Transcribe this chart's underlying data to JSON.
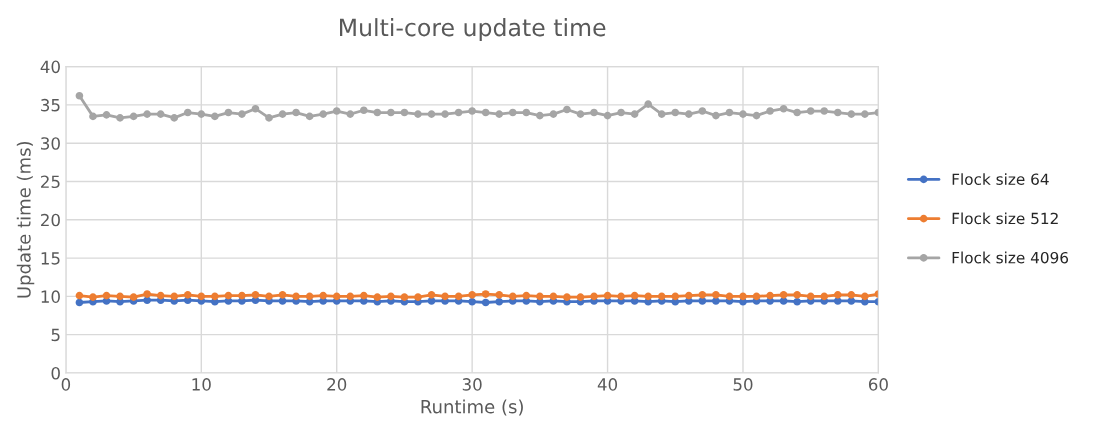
{
  "chart_data": {
    "type": "line",
    "title": "Multi-core update time",
    "xlabel": "Runtime (s)",
    "ylabel": "Update time (ms)",
    "x": [
      1,
      2,
      3,
      4,
      5,
      6,
      7,
      8,
      9,
      10,
      11,
      12,
      13,
      14,
      15,
      16,
      17,
      18,
      19,
      20,
      21,
      22,
      23,
      24,
      25,
      26,
      27,
      28,
      29,
      30,
      31,
      32,
      33,
      34,
      35,
      36,
      37,
      38,
      39,
      40,
      41,
      42,
      43,
      44,
      45,
      46,
      47,
      48,
      49,
      50,
      51,
      52,
      53,
      54,
      55,
      56,
      57,
      58,
      59,
      60
    ],
    "series": [
      {
        "name": "Flock size 64",
        "color": "#4472c4",
        "values": [
          9.2,
          9.3,
          9.4,
          9.3,
          9.4,
          9.5,
          9.5,
          9.4,
          9.5,
          9.4,
          9.3,
          9.4,
          9.4,
          9.5,
          9.4,
          9.4,
          9.4,
          9.3,
          9.4,
          9.4,
          9.4,
          9.4,
          9.3,
          9.4,
          9.3,
          9.3,
          9.4,
          9.4,
          9.4,
          9.3,
          9.2,
          9.3,
          9.4,
          9.4,
          9.3,
          9.4,
          9.3,
          9.3,
          9.4,
          9.4,
          9.4,
          9.4,
          9.3,
          9.4,
          9.3,
          9.4,
          9.4,
          9.4,
          9.4,
          9.3,
          9.4,
          9.4,
          9.4,
          9.3,
          9.4,
          9.4,
          9.4,
          9.4,
          9.3,
          9.3
        ]
      },
      {
        "name": "Flock size 512",
        "color": "#ed7d31",
        "values": [
          10.1,
          9.9,
          10.1,
          10.0,
          9.9,
          10.3,
          10.1,
          10.0,
          10.2,
          10.0,
          10.0,
          10.1,
          10.1,
          10.2,
          10.0,
          10.2,
          10.0,
          10.0,
          10.1,
          10.0,
          10.0,
          10.1,
          9.9,
          10.0,
          9.9,
          9.9,
          10.2,
          10.0,
          10.0,
          10.2,
          10.3,
          10.2,
          10.0,
          10.1,
          10.0,
          10.0,
          9.9,
          9.9,
          10.0,
          10.1,
          10.0,
          10.1,
          10.0,
          10.0,
          10.0,
          10.1,
          10.2,
          10.2,
          10.0,
          10.0,
          10.0,
          10.1,
          10.2,
          10.2,
          10.0,
          10.0,
          10.2,
          10.2,
          10.0,
          10.3
        ]
      },
      {
        "name": "Flock size 4096",
        "color": "#a5a5a5",
        "values": [
          36.2,
          33.5,
          33.7,
          33.3,
          33.5,
          33.8,
          33.8,
          33.3,
          34.0,
          33.8,
          33.5,
          34.0,
          33.8,
          34.5,
          33.3,
          33.8,
          34.0,
          33.5,
          33.8,
          34.2,
          33.8,
          34.3,
          34.0,
          34.0,
          34.0,
          33.8,
          33.8,
          33.8,
          34.0,
          34.2,
          34.0,
          33.8,
          34.0,
          34.0,
          33.6,
          33.8,
          34.4,
          33.8,
          34.0,
          33.6,
          34.0,
          33.8,
          35.1,
          33.8,
          34.0,
          33.8,
          34.2,
          33.6,
          34.0,
          33.8,
          33.6,
          34.2,
          34.5,
          34.0,
          34.2,
          34.2,
          34.0,
          33.8,
          33.8,
          34.0
        ]
      }
    ],
    "xlim": [
      0,
      60
    ],
    "xticks": [
      0,
      10,
      20,
      30,
      40,
      50,
      60
    ],
    "ylim": [
      0,
      40
    ],
    "yticks": [
      0,
      5,
      10,
      15,
      20,
      25,
      30,
      35,
      40
    ],
    "grid": true,
    "legend": "right",
    "marker": "circle",
    "line_style": "solid"
  }
}
